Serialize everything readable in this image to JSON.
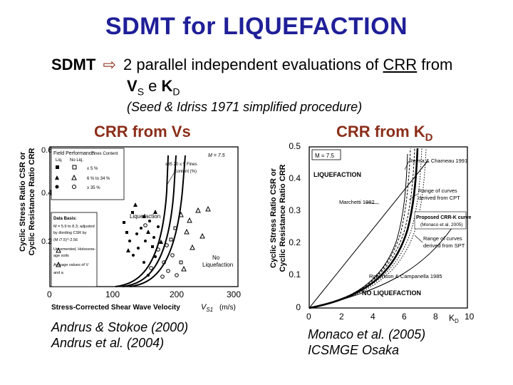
{
  "title": "SDMT for LIQUEFACTION",
  "intro": {
    "lead": "SDMT",
    "arrow_icon": "hollow-right-arrow",
    "text_a": "2 parallel independent evaluations of ",
    "crr": "CRR",
    "text_b": " from",
    "vs_v": "V",
    "vs_sub": "S",
    "conj": " e ",
    "kd_k": "K",
    "kd_sub": "D",
    "note": "(Seed & Idriss 1971 simplified procedure)"
  },
  "left": {
    "heading": "CRR from Vs",
    "citation": [
      "Andrus & Stokoe (2000)",
      "Andrus et al. (2004)"
    ],
    "chart": {
      "ylabel_1": "Cyclic Stress Ratio CSR or",
      "ylabel_2": "Cyclic Resistance Ratio CRR",
      "xlabel": "Stress-Corrected Shear Wave Velocity",
      "xlabel_var": "V",
      "xlabel_sub": "S1",
      "xlabel_unit": "(m/s)",
      "x_ticks": [
        "0",
        "100",
        "200",
        "300"
      ],
      "y_ticks": [
        "0.6",
        "0.4",
        "0.2"
      ],
      "legend_header": "Field Performance",
      "legend_cols": [
        "Liq.",
        "No Liq.",
        "Fines Content"
      ],
      "legend_rows": [
        "≤ 5 %",
        "6 % to 34 %",
        "≥ 35 %"
      ],
      "mw": "M  = 7.5",
      "fines_label": "≥35 20 ≤ 5  Fines",
      "fines_label2": "Content (%)",
      "liq_label": "Liquefaction",
      "noliq_label_1": "No",
      "noliq_label_2": "Liquefaction",
      "basis_title": "Data Basis:",
      "basis_lines": [
        "M  = 5.9 to 8.3; adjusted",
        "by dividing CSR by",
        "(M /7.5)^-2.56",
        "Uncemented, Holocene-",
        "age soils",
        "Average values of V",
        "and a"
      ]
    }
  },
  "right": {
    "heading_main": "CRR from K",
    "heading_sub": "D",
    "citation": [
      "Monaco et al. (2005)",
      "ICSMGE Osaka"
    ],
    "chart": {
      "ylabel_1": "Cyclic Stress Ratio CSR or",
      "ylabel_2": "Cyclic Resistance Ratio CRR",
      "xlabel_main": "K",
      "xlabel_sub": "D",
      "x_ticks": [
        "0",
        "2",
        "4",
        "6",
        "8",
        "10"
      ],
      "y_ticks": [
        "0.5",
        "0.4",
        "0.3",
        "0.2",
        "0.1",
        "0"
      ],
      "mw": "M = 7.5",
      "liquefaction": "LIQUEFACTION",
      "no_liquefaction": "NO LIQUEFACTION",
      "ann_reyna": "Reyna & Chameau 1991",
      "ann_cpt_1": "Range of curves",
      "ann_cpt_2": "derived from CPT",
      "ann_marchetti": "Marchetti 1982",
      "ann_proposed_1": "Proposed CRR-K  curve",
      "ann_proposed_2": "(Monaco et al. 2005)",
      "ann_spt_1": "Range of curves",
      "ann_spt_2": "derived from SPT",
      "ann_robertson": "Robertson & Campanella 1985"
    }
  }
}
